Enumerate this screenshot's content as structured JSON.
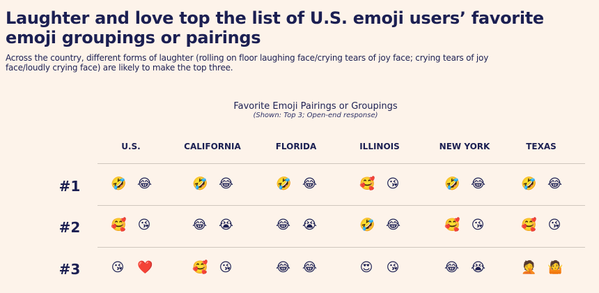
{
  "title": "Laughter and love top the list of U.S. emoji users’ favorite emoji groupings or pairings",
  "subtitle": "Across the country, different forms of laughter (rolling on floor laughing face/crying tears of joy face; crying tears of joy face/loudly crying face) are likely to make the top three.",
  "chart_title": "Favorite Emoji Pairings or Groupings",
  "chart_note": "(Shown: Top 3; Open-end response)",
  "columns": [
    "U.S.",
    "CALIFORNIA",
    "FLORIDA",
    "ILLINOIS",
    "NEW YORK",
    "TEXAS"
  ],
  "rows": [
    {
      "rank": "#1",
      "cells": [
        [
          "🤣",
          "😂"
        ],
        [
          "🤣",
          "😂"
        ],
        [
          "🤣",
          "😂"
        ],
        [
          "🥰",
          "😘"
        ],
        [
          "🤣",
          "😂"
        ],
        [
          "🤣",
          "😂"
        ]
      ]
    },
    {
      "rank": "#2",
      "cells": [
        [
          "🥰",
          "😘"
        ],
        [
          "😂",
          "😭"
        ],
        [
          "😂",
          "😭"
        ],
        [
          "🤣",
          "😂"
        ],
        [
          "🥰",
          "😘"
        ],
        [
          "🥰",
          "😘"
        ]
      ]
    },
    {
      "rank": "#3",
      "cells": [
        [
          "😘",
          "❤️"
        ],
        [
          "🥰",
          "😘"
        ],
        [
          "😂",
          "😂"
        ],
        [
          "😍",
          "😘"
        ],
        [
          "😂",
          "😭"
        ],
        [
          "🤦",
          "🤷"
        ]
      ]
    }
  ]
}
